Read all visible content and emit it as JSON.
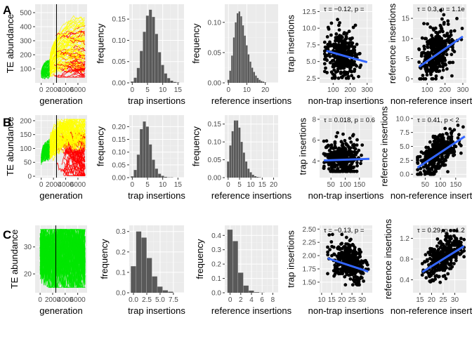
{
  "row_labels": [
    "A",
    "B",
    "C"
  ],
  "chart_data": [
    {
      "id": "A1",
      "type": "line",
      "panel_kind": "trajectory",
      "xlabel": "generation",
      "ylabel": "TE abundance",
      "xlim": [
        -1000,
        7500
      ],
      "ylim": [
        0,
        560
      ],
      "xticks": [
        0,
        2000,
        4000,
        6000
      ],
      "xtick_labels": [
        "0",
        "2000",
        "4000",
        "6000"
      ],
      "yticks": [
        100,
        200,
        300,
        400,
        500
      ],
      "ytick_labels": [
        "100",
        "200",
        "300",
        "400",
        "500"
      ],
      "vline": 2500,
      "series": [
        {
          "color": "#00e600",
          "values": [
            [
              0,
              60
            ],
            [
              400,
              90
            ],
            [
              900,
              130
            ],
            [
              1300,
              160
            ]
          ]
        },
        {
          "color": "#ffff00",
          "values": [
            [
              0,
              60
            ],
            [
              1500,
              200
            ],
            [
              3000,
              330
            ],
            [
              5000,
              420
            ],
            [
              7000,
              480
            ]
          ]
        },
        {
          "color": "#ff0000",
          "values": [
            [
              2000,
              150
            ],
            [
              4000,
              250
            ],
            [
              5500,
              300
            ],
            [
              7000,
              340
            ]
          ]
        }
      ],
      "colors": {
        "green": "#00e600",
        "yellow": "#ffff00",
        "red": "#ff0000"
      }
    },
    {
      "id": "A2",
      "type": "bar",
      "panel_kind": "histogram",
      "xlabel": "trap insertions",
      "ylabel": "frequency",
      "xlim": [
        -1,
        17
      ],
      "ylim": [
        0,
        0.185
      ],
      "xticks": [
        0,
        5,
        10,
        15
      ],
      "xtick_labels": [
        "0",
        "5",
        "10",
        "15"
      ],
      "yticks": [
        0,
        0.05,
        0.1,
        0.15
      ],
      "ytick_labels": [
        "0.00",
        "0.05",
        "0.10",
        "0.15"
      ],
      "bin_start": 0,
      "bin_width": 1,
      "values": [
        0.003,
        0.012,
        0.035,
        0.075,
        0.12,
        0.158,
        0.172,
        0.155,
        0.115,
        0.072,
        0.042,
        0.022,
        0.011,
        0.005,
        0.002,
        0.001
      ]
    },
    {
      "id": "A3",
      "type": "bar",
      "panel_kind": "histogram",
      "xlabel": "reference insertions",
      "ylabel": "frequency",
      "xlim": [
        -2,
        27
      ],
      "ylim": [
        0,
        0.13
      ],
      "xticks": [
        0,
        10,
        20
      ],
      "xtick_labels": [
        "0",
        "10",
        "20"
      ],
      "yticks": [
        0,
        0.05,
        0.1
      ],
      "ytick_labels": [
        "0.00",
        "0.05",
        "0.10"
      ],
      "bin_start": 0,
      "bin_width": 1,
      "values": [
        0.005,
        0.02,
        0.045,
        0.075,
        0.1,
        0.115,
        0.118,
        0.11,
        0.095,
        0.078,
        0.062,
        0.047,
        0.035,
        0.025,
        0.018,
        0.012,
        0.008,
        0.005,
        0.003,
        0.002,
        0.001
      ]
    },
    {
      "id": "A4",
      "type": "scatter",
      "panel_kind": "scatter",
      "xlabel": "non-trap insertions",
      "ylabel": "trap insertions",
      "annotation": "τ = −0.12, p =",
      "xlim": [
        20,
        330
      ],
      "ylim": [
        1.8,
        13.6
      ],
      "xticks": [
        100,
        200,
        300
      ],
      "xtick_labels": [
        "100",
        "200",
        "300"
      ],
      "yticks": [
        2.5,
        5,
        7.5,
        10,
        12.5
      ],
      "ytick_labels": [
        "2.5",
        "5.0",
        "7.5",
        "10.0",
        "12.5"
      ],
      "cloud": {
        "x_center": 150,
        "x_sd": 45,
        "x_min": 50,
        "x_max": 300,
        "y_center": 6,
        "y_sd": 1.8,
        "y_min": 2.5,
        "y_max": 12.8
      },
      "fit": [
        [
          60,
          6.6
        ],
        [
          300,
          4.9
        ]
      ]
    },
    {
      "id": "A5",
      "type": "scatter",
      "panel_kind": "scatter",
      "xlabel": "non-reference insertions",
      "ylabel": "reference insertions",
      "annotation": "τ = 0.3, p = 1.1e",
      "xlim": [
        20,
        320
      ],
      "ylim": [
        -1,
        18.5
      ],
      "xticks": [
        100,
        200,
        300
      ],
      "xtick_labels": [
        "100",
        "200",
        "300"
      ],
      "yticks": [
        0,
        5,
        10,
        15
      ],
      "ytick_labels": [
        "0",
        "5",
        "10",
        "15"
      ],
      "cloud": {
        "x_center": 150,
        "x_sd": 45,
        "x_min": 50,
        "x_max": 300,
        "y_center": 6.5,
        "y_sd": 3,
        "y_min": 0,
        "y_max": 17
      },
      "fit": [
        [
          55,
          3
        ],
        [
          300,
          10.5
        ]
      ]
    },
    {
      "id": "B1",
      "type": "line",
      "panel_kind": "trajectory",
      "xlabel": "generation",
      "ylabel": "TE abundance",
      "xlim": [
        -1000,
        7500
      ],
      "ylim": [
        -5,
        220
      ],
      "xticks": [
        0,
        2000,
        4000,
        6000
      ],
      "xtick_labels": [
        "0",
        "2000",
        "4000",
        "6000"
      ],
      "yticks": [
        0,
        50,
        100,
        150,
        200
      ],
      "ytick_labels": [
        "0",
        "50",
        "100",
        "150",
        "200"
      ],
      "vline": 2500,
      "series": [
        {
          "color": "#00e600",
          "values": [
            [
              0,
              60
            ],
            [
              400,
              90
            ],
            [
              900,
              130
            ],
            [
              1300,
              160
            ]
          ]
        },
        {
          "color": "#ffff00",
          "values": [
            [
              0,
              60
            ],
            [
              1500,
              170
            ],
            [
              3000,
              180
            ],
            [
              5000,
              185
            ],
            [
              7000,
              190
            ]
          ]
        },
        {
          "color": "#ff0000",
          "values": [
            [
              3000,
              100
            ],
            [
              4500,
              120
            ],
            [
              6000,
              140
            ],
            [
              7000,
              150
            ]
          ]
        }
      ],
      "colors": {
        "green": "#00e600",
        "yellow": "#ffff00",
        "red": "#ff0000"
      }
    },
    {
      "id": "B2",
      "type": "bar",
      "panel_kind": "histogram",
      "xlabel": "trap insertions",
      "ylabel": "frequency",
      "xlim": [
        -1,
        17
      ],
      "ylim": [
        0,
        0.245
      ],
      "xticks": [
        0,
        5,
        10,
        15
      ],
      "xtick_labels": [
        "0",
        "5",
        "10",
        "15"
      ],
      "yticks": [
        0,
        0.05,
        0.1,
        0.15,
        0.2
      ],
      "ytick_labels": [
        "0.00",
        "0.05",
        "0.10",
        "0.15",
        "0.20"
      ],
      "bin_start": 0,
      "bin_width": 1,
      "values": [
        0.005,
        0.03,
        0.09,
        0.19,
        0.22,
        0.2,
        0.13,
        0.07,
        0.035,
        0.015,
        0.007,
        0.003,
        0.001,
        0.001
      ]
    },
    {
      "id": "B3",
      "type": "bar",
      "panel_kind": "histogram",
      "xlabel": "reference insertions",
      "ylabel": "frequency",
      "xlim": [
        -1.5,
        22
      ],
      "ylim": [
        0,
        0.175
      ],
      "xticks": [
        0,
        5,
        10,
        15,
        20
      ],
      "xtick_labels": [
        "0",
        "5",
        "10",
        "15",
        "20"
      ],
      "yticks": [
        0,
        0.05,
        0.1,
        0.15
      ],
      "ytick_labels": [
        "0.00",
        "0.05",
        "0.10",
        "0.15"
      ],
      "bin_start": 0,
      "bin_width": 1,
      "values": [
        0.045,
        0.09,
        0.13,
        0.16,
        0.16,
        0.14,
        0.1,
        0.07,
        0.045,
        0.025,
        0.015,
        0.008,
        0.004,
        0.002,
        0.001
      ]
    },
    {
      "id": "B4",
      "type": "scatter",
      "panel_kind": "scatter",
      "xlabel": "non-trap insertions",
      "ylabel": "trap insertions",
      "annotation": "τ = 0.018, p = 0.6",
      "xlim": [
        10,
        195
      ],
      "ylim": [
        2.4,
        8.4
      ],
      "xticks": [
        50,
        100,
        150
      ],
      "xtick_labels": [
        "50",
        "100",
        "150"
      ],
      "yticks": [
        4,
        6,
        8
      ],
      "ytick_labels": [
        "4",
        "6",
        "8"
      ],
      "cloud": {
        "x_center": 90,
        "x_sd": 30,
        "x_min": 25,
        "x_max": 185,
        "y_center": 4.2,
        "y_sd": 0.9,
        "y_min": 3,
        "y_max": 7.6
      },
      "fit": [
        [
          25,
          4.05
        ],
        [
          185,
          4.2
        ]
      ]
    },
    {
      "id": "B5",
      "type": "scatter",
      "panel_kind": "scatter",
      "xlabel": "non-reference insertions",
      "ylabel": "reference insertions",
      "annotation": "τ = 0.41, p < 2",
      "xlim": [
        10,
        185
      ],
      "ylim": [
        -0.6,
        10.6
      ],
      "xticks": [
        50,
        100,
        150
      ],
      "xtick_labels": [
        "50",
        "100",
        "150"
      ],
      "yticks": [
        0,
        2.5,
        5,
        7.5,
        10
      ],
      "ytick_labels": [
        "0.0",
        "2.5",
        "5.0",
        "7.5",
        "10.0"
      ],
      "cloud": {
        "x_center": 90,
        "x_sd": 30,
        "x_min": 25,
        "x_max": 180,
        "y_center": 3.5,
        "y_sd": 1.6,
        "y_min": 0,
        "y_max": 9.7
      },
      "fit": [
        [
          25,
          1.2
        ],
        [
          180,
          6.8
        ]
      ]
    },
    {
      "id": "C1",
      "type": "line",
      "panel_kind": "trajectory",
      "xlabel": "generation",
      "ylabel": "TE abundance",
      "xlim": [
        -800,
        7500
      ],
      "ylim": [
        13,
        38
      ],
      "xticks": [
        0,
        2000,
        4000,
        6000
      ],
      "xtick_labels": [
        "0",
        "2000",
        "4000",
        "6000"
      ],
      "yticks": [
        20,
        30
      ],
      "ytick_labels": [
        "20",
        "30"
      ],
      "vline": 2500,
      "series": [
        {
          "color": "#00e600",
          "values": [
            [
              0,
              30
            ],
            [
              2000,
              28
            ],
            [
              4000,
              27
            ],
            [
              7000,
              26
            ]
          ]
        }
      ],
      "colors": {
        "green": "#00e600"
      }
    },
    {
      "id": "C2",
      "type": "bar",
      "panel_kind": "histogram",
      "xlabel": "trap insertions",
      "ylabel": "frequency",
      "xlim": [
        -0.8,
        9.5
      ],
      "ylim": [
        0,
        0.33
      ],
      "xticks": [
        0,
        2.5,
        5,
        7.5
      ],
      "xtick_labels": [
        "0.0",
        "2.5",
        "5.0",
        "7.5"
      ],
      "yticks": [
        0,
        0.1,
        0.2,
        0.3
      ],
      "ytick_labels": [
        "0.0",
        "0.1",
        "0.2",
        "0.3"
      ],
      "bin_start": 0,
      "bin_width": 1,
      "values": [
        0.13,
        0.3,
        0.27,
        0.17,
        0.08,
        0.03,
        0.012,
        0.005
      ]
    },
    {
      "id": "C3",
      "type": "bar",
      "panel_kind": "histogram",
      "xlabel": "reference insertions",
      "ylabel": "frequency",
      "xlim": [
        -1,
        9
      ],
      "ylim": [
        0,
        0.47
      ],
      "xticks": [
        0,
        2,
        4,
        6,
        8
      ],
      "xtick_labels": [
        "0",
        "2",
        "4",
        "6",
        "8"
      ],
      "yticks": [
        0,
        0.1,
        0.2,
        0.3,
        0.4
      ],
      "ytick_labels": [
        "0.0",
        "0.1",
        "0.2",
        "0.3",
        "0.4"
      ],
      "bin_start": 0,
      "bin_width": 1,
      "values": [
        0.44,
        0.36,
        0.14,
        0.05,
        0.015,
        0.004,
        0.001
      ]
    },
    {
      "id": "C4",
      "type": "scatter",
      "panel_kind": "scatter",
      "xlabel": "non-trap insertions",
      "ylabel": "trap insertions",
      "annotation": "τ = −0.13, p =",
      "xlim": [
        9,
        35
      ],
      "ylim": [
        1.3,
        2.57
      ],
      "xticks": [
        10,
        15,
        20,
        25,
        30
      ],
      "xtick_labels": [
        "10",
        "15",
        "20",
        "25",
        "30"
      ],
      "yticks": [
        1.5,
        1.75,
        2,
        2.25,
        2.5
      ],
      "ytick_labels": [
        "1.50",
        "1.75",
        "2.00",
        "2.25",
        "2.50"
      ],
      "cloud": {
        "x_center": 24,
        "x_sd": 4,
        "x_min": 13,
        "x_max": 33,
        "y_center": 1.85,
        "y_sd": 0.17,
        "y_min": 1.45,
        "y_max": 2.4
      },
      "fit": [
        [
          13,
          1.95
        ],
        [
          33,
          1.7
        ]
      ]
    },
    {
      "id": "C5",
      "type": "scatter",
      "panel_kind": "scatter",
      "xlabel": "non-reference insertions",
      "ylabel": "reference insertions",
      "annotation": "τ = 0.29, p = 1.2",
      "xlim": [
        12,
        35
      ],
      "ylim": [
        0.15,
        1.45
      ],
      "xticks": [
        15,
        20,
        25,
        30
      ],
      "xtick_labels": [
        "15",
        "20",
        "25",
        "30"
      ],
      "yticks": [
        0.4,
        0.8,
        1.2
      ],
      "ytick_labels": [
        "0.4",
        "0.8",
        "1.2"
      ],
      "cloud": {
        "x_center": 25,
        "x_sd": 4,
        "x_min": 16,
        "x_max": 34,
        "y_center": 0.85,
        "y_sd": 0.17,
        "y_min": 0.35,
        "y_max": 1.35
      },
      "fit": [
        [
          16,
          0.55
        ],
        [
          34,
          1.05
        ]
      ]
    }
  ]
}
